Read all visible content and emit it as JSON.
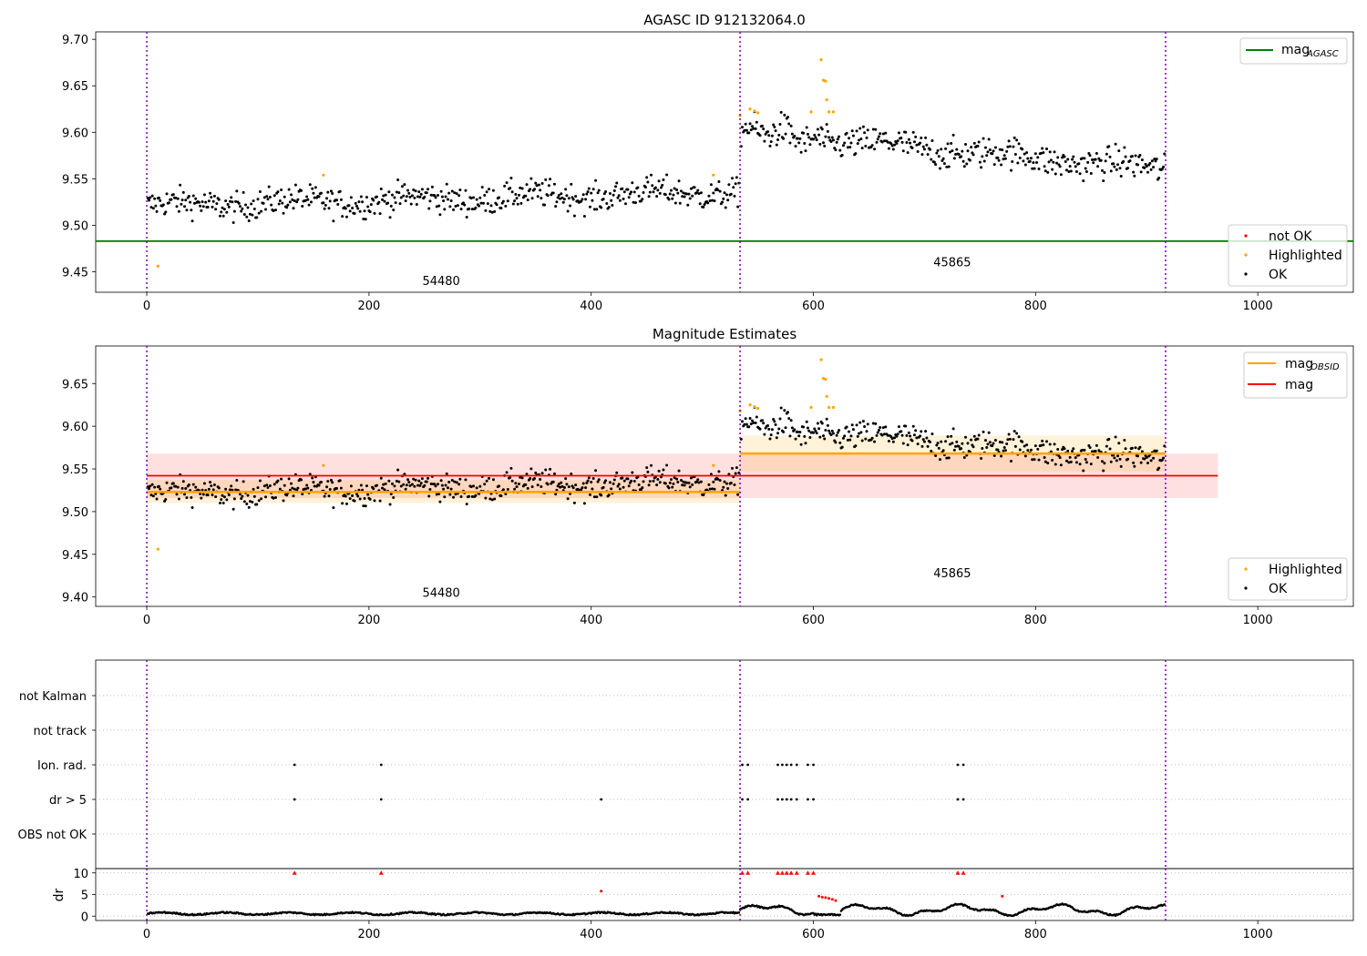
{
  "chart_data": [
    {
      "type": "scatter",
      "title": "AGASC ID 912132064.0",
      "xlim": [
        -46,
        1086
      ],
      "ylim": [
        9.428,
        9.708
      ],
      "xticks": [
        0,
        200,
        400,
        600,
        800,
        1000
      ],
      "yticks": [
        9.45,
        9.5,
        9.55,
        9.6,
        9.65,
        9.7
      ],
      "ytick_labels": [
        "9.45",
        "9.50",
        "9.55",
        "9.60",
        "9.65",
        "9.70"
      ],
      "obs_boundaries": [
        0,
        534,
        917
      ],
      "obs_labels": [
        {
          "text": "54480",
          "x": 265,
          "y": 9.436
        },
        {
          "text": "45865",
          "x": 725,
          "y": 9.456
        }
      ],
      "hlines": [
        {
          "name": "mag_AGASC",
          "value": 9.483,
          "color": "#008000"
        }
      ],
      "segments": [
        {
          "x0": 0,
          "x1": 534,
          "base": 9.521,
          "trend": 0.015,
          "amp": 0.011
        },
        {
          "x0": 534,
          "x1": 917,
          "base": 9.6,
          "trend": -0.04,
          "amp": 0.012
        }
      ],
      "highlighted_points": [
        {
          "x": 10,
          "y": 9.456
        },
        {
          "x": 159,
          "y": 9.554
        },
        {
          "x": 510,
          "y": 9.554
        },
        {
          "x": 534,
          "y": 9.618
        },
        {
          "x": 543,
          "y": 9.625
        },
        {
          "x": 547,
          "y": 9.623
        },
        {
          "x": 550,
          "y": 9.621
        },
        {
          "x": 598,
          "y": 9.622
        },
        {
          "x": 607,
          "y": 9.678
        },
        {
          "x": 609,
          "y": 9.656
        },
        {
          "x": 611,
          "y": 9.655
        },
        {
          "x": 612,
          "y": 9.635
        },
        {
          "x": 614,
          "y": 9.622
        },
        {
          "x": 618,
          "y": 9.622
        }
      ],
      "legend_top": [
        {
          "label": "mag",
          "sub": "AGASC",
          "color": "#008000"
        }
      ],
      "legend_bottom": [
        {
          "label": "not OK",
          "color": "#ff0000"
        },
        {
          "label": "Highlighted",
          "color": "#ffa500"
        },
        {
          "label": "OK",
          "color": "#000000"
        }
      ]
    },
    {
      "type": "scatter",
      "title": "Magnitude Estimates",
      "xlim": [
        -46,
        1086
      ],
      "ylim": [
        9.389,
        9.694
      ],
      "xticks": [
        0,
        200,
        400,
        600,
        800,
        1000
      ],
      "yticks": [
        9.4,
        9.45,
        9.5,
        9.55,
        9.6,
        9.65
      ],
      "ytick_labels": [
        "9.40",
        "9.45",
        "9.50",
        "9.55",
        "9.60",
        "9.65"
      ],
      "obs_boundaries": [
        0,
        534,
        917
      ],
      "obs_labels": [
        {
          "text": "54480",
          "x": 265,
          "y": 9.4
        },
        {
          "text": "45865",
          "x": 725,
          "y": 9.423
        }
      ],
      "mag": {
        "value": 9.542,
        "x0": 0,
        "x1": 964,
        "band": [
          9.516,
          9.568
        ],
        "color": "#ff0000"
      },
      "mag_obsid": [
        {
          "x0": 0,
          "x1": 534,
          "value": 9.523,
          "band": [
            9.51,
            9.537
          ]
        },
        {
          "x0": 534,
          "x1": 917,
          "value": 9.568,
          "band": [
            9.547,
            9.589
          ]
        }
      ],
      "legend_top": [
        {
          "label": "mag",
          "sub": "OBSID",
          "color": "#ffa500"
        },
        {
          "label": "mag",
          "sub": "",
          "color": "#ff0000"
        }
      ],
      "legend_bottom": [
        {
          "label": "Highlighted",
          "color": "#ffa500"
        },
        {
          "label": "OK",
          "color": "#000000"
        }
      ]
    },
    {
      "type": "scatter",
      "title": "",
      "xlim": [
        -46,
        1086
      ],
      "categories": [
        "not Kalman",
        "not track",
        "Ion. rad.",
        "dr > 5",
        "OBS not OK"
      ],
      "flags": {
        "Ion. rad.": [
          133,
          211,
          536,
          541,
          568,
          572,
          576,
          580,
          585,
          595,
          600,
          730,
          735
        ],
        "dr > 5": [
          133,
          211,
          409,
          536,
          541,
          568,
          572,
          576,
          580,
          585,
          595,
          600,
          730,
          735
        ]
      }
    },
    {
      "type": "scatter",
      "title": "",
      "xlim": [
        -46,
        1086
      ],
      "ylim": [
        -1,
        11
      ],
      "ylabel": "dr",
      "yticks": [
        0,
        5,
        10
      ],
      "ytick_labels": [
        "0",
        "5",
        "10"
      ],
      "xticks": [
        0,
        200,
        400,
        600,
        800,
        1000
      ],
      "clipped_markers": [
        133,
        211,
        536,
        541,
        568,
        572,
        576,
        580,
        585,
        595,
        600,
        730,
        735
      ],
      "red_points": [
        {
          "x": 409,
          "y": 5.8
        },
        {
          "x": 770,
          "y": 4.6
        },
        {
          "x": 605,
          "y": 4.6
        },
        {
          "x": 608,
          "y": 4.4
        },
        {
          "x": 611,
          "y": 4.3
        },
        {
          "x": 614,
          "y": 4.1
        },
        {
          "x": 617,
          "y": 3.9
        },
        {
          "x": 620,
          "y": 3.6
        }
      ]
    }
  ]
}
